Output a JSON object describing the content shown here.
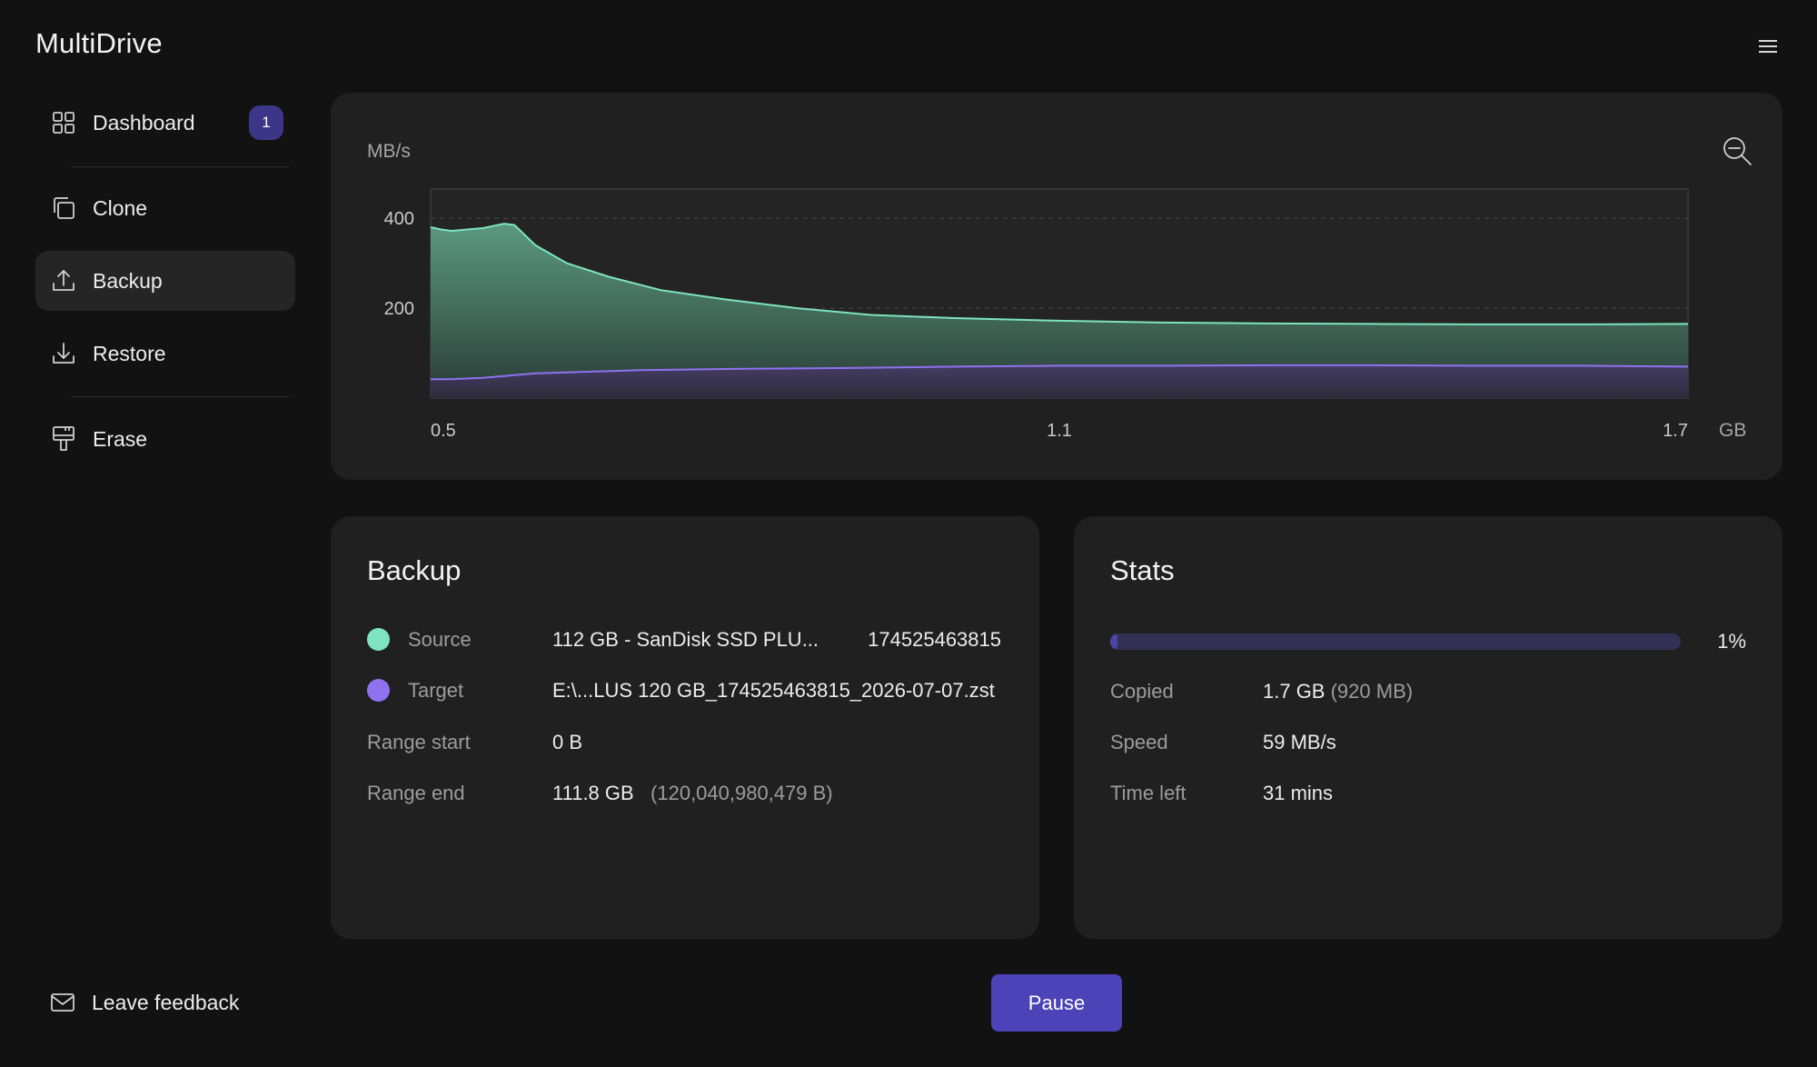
{
  "app": {
    "title": "MultiDrive"
  },
  "icons": {
    "menu": "hamburger-menu-icon",
    "zoom": "zoom-out-icon",
    "feedback": "envelope-icon"
  },
  "sidebar": {
    "items": [
      {
        "label": "Dashboard",
        "icon": "grid-icon",
        "badge": "1",
        "active": false
      },
      {
        "label": "Clone",
        "icon": "copy-icon",
        "active": false
      },
      {
        "label": "Backup",
        "icon": "upload-icon",
        "active": true
      },
      {
        "label": "Restore",
        "icon": "download-icon",
        "active": false
      },
      {
        "label": "Erase",
        "icon": "eraser-icon",
        "active": false
      }
    ],
    "feedback_label": "Leave feedback"
  },
  "chart_data": {
    "type": "area",
    "title": "",
    "ylabel": "MB/s",
    "xlabel": "GB",
    "x_ticks": [
      "0.5",
      "1.1",
      "1.7"
    ],
    "y_ticks": [
      "200",
      "400"
    ],
    "xlim": [
      0.5,
      1.7
    ],
    "ylim": [
      0,
      465
    ],
    "grid": true,
    "series": [
      {
        "color": "#7ee3c0",
        "x": [
          0.5,
          0.51,
          0.52,
          0.55,
          0.57,
          0.58,
          0.6,
          0.63,
          0.67,
          0.72,
          0.78,
          0.85,
          0.92,
          1.0,
          1.1,
          1.2,
          1.3,
          1.4,
          1.5,
          1.6,
          1.7
        ],
        "y": [
          380,
          375,
          372,
          378,
          388,
          385,
          340,
          300,
          270,
          240,
          220,
          200,
          185,
          178,
          172,
          168,
          166,
          165,
          164,
          164,
          165
        ]
      },
      {
        "color": "#8f72f0",
        "x": [
          0.5,
          0.52,
          0.55,
          0.6,
          0.7,
          0.8,
          0.9,
          1.0,
          1.1,
          1.2,
          1.3,
          1.4,
          1.5,
          1.6,
          1.7
        ],
        "y": [
          42,
          42,
          45,
          55,
          62,
          65,
          67,
          70,
          72,
          72,
          73,
          73,
          72,
          72,
          70
        ]
      }
    ]
  },
  "backup": {
    "title": "Backup",
    "source": {
      "label": "Source",
      "value": "112 GB - SanDisk SSD PLU...",
      "serial": "174525463815",
      "color": "#7ee3c0"
    },
    "target": {
      "label": "Target",
      "value": "E:\\...LUS 120 GB_174525463815_2026-07-07.zst",
      "color": "#8f72f0"
    },
    "range_start": {
      "label": "Range start",
      "value": "0 B"
    },
    "range_end": {
      "label": "Range end",
      "value": "111.8 GB",
      "detail": "(120,040,980,479 B)"
    }
  },
  "stats": {
    "title": "Stats",
    "progress_percent": "1%",
    "progress_fraction": 0.01,
    "copied": {
      "label": "Copied",
      "value": "1.7 GB",
      "detail": "(920 MB)"
    },
    "speed": {
      "label": "Speed",
      "value": "59 MB/s"
    },
    "time_left": {
      "label": "Time left",
      "value": "31 mins"
    }
  },
  "actions": {
    "pause_label": "Pause"
  }
}
